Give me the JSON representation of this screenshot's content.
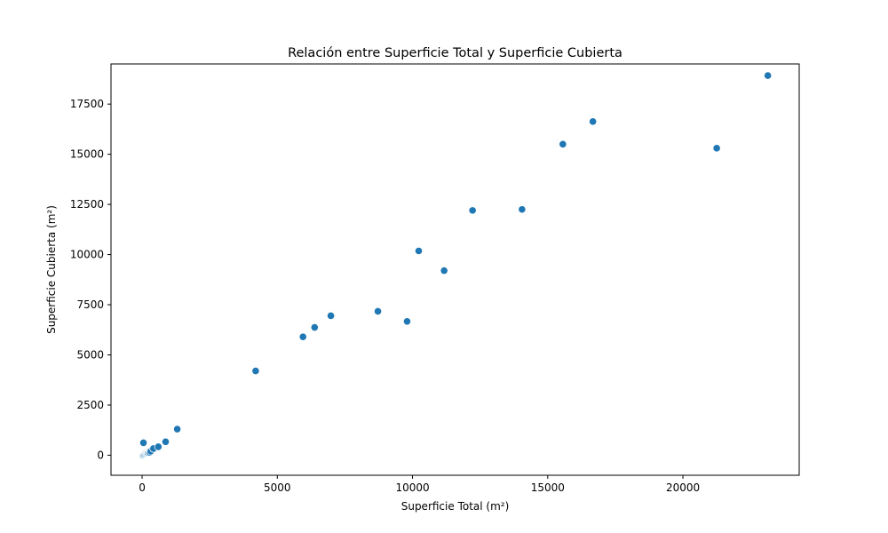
{
  "chart_data": {
    "type": "scatter",
    "title": "Relación entre Superficie Total y Superficie Cubierta",
    "xlabel": "Superficie Total (m²)",
    "ylabel": "Superficie Cubierta (m²)",
    "xlim": [
      -1150,
      24300
    ],
    "ylim": [
      -1000,
      19500
    ],
    "xticks": [
      0,
      5000,
      10000,
      15000,
      20000
    ],
    "yticks": [
      0,
      2500,
      5000,
      7500,
      10000,
      12500,
      15000,
      17500
    ],
    "grid": false,
    "marker_color": "#1f77b4",
    "series": [
      {
        "points": [
          [
            30,
            0
          ],
          [
            60,
            30
          ],
          [
            90,
            60
          ],
          [
            120,
            90
          ],
          [
            150,
            120
          ],
          [
            180,
            110
          ],
          [
            200,
            150
          ],
          [
            220,
            130
          ],
          [
            260,
            160
          ],
          [
            280,
            140
          ],
          [
            320,
            200
          ],
          [
            420,
            330
          ],
          [
            600,
            420
          ],
          [
            870,
            670
          ],
          [
            1300,
            1300
          ],
          [
            50,
            620
          ],
          [
            4200,
            4200
          ],
          [
            5950,
            5900
          ],
          [
            6380,
            6370
          ],
          [
            6980,
            6950
          ],
          [
            8720,
            7170
          ],
          [
            9800,
            6670
          ],
          [
            10230,
            10180
          ],
          [
            11170,
            9200
          ],
          [
            12220,
            12200
          ],
          [
            14050,
            12250
          ],
          [
            15560,
            15500
          ],
          [
            16670,
            16630
          ],
          [
            21250,
            15300
          ],
          [
            23140,
            18920
          ]
        ]
      }
    ]
  }
}
